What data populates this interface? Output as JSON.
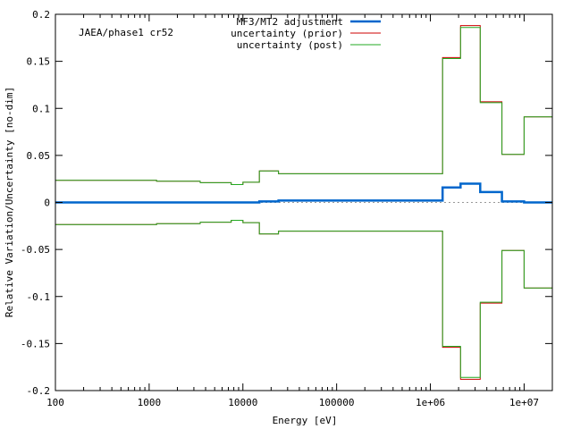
{
  "chart_data": {
    "type": "line",
    "annotation": "JAEA/phase1 cr52",
    "xlabel": "Energy [eV]",
    "ylabel": "Relative Variation/Uncertainty [no-dim]",
    "xscale": "log",
    "xlim": [
      100,
      20000000
    ],
    "ylim": [
      -0.2,
      0.2
    ],
    "x_ticks": [
      {
        "value": 100,
        "label": "100"
      },
      {
        "value": 1000,
        "label": "1000"
      },
      {
        "value": 10000,
        "label": "10000"
      },
      {
        "value": 100000,
        "label": "100000"
      },
      {
        "value": 1000000,
        "label": "1e+06"
      },
      {
        "value": 10000000,
        "label": "1e+07"
      }
    ],
    "y_ticks": [
      {
        "value": 0.2,
        "label": "0.2"
      },
      {
        "value": 0.15,
        "label": "0.15"
      },
      {
        "value": 0.1,
        "label": "0.1"
      },
      {
        "value": 0.05,
        "label": "0.05"
      },
      {
        "value": 0,
        "label": "0"
      },
      {
        "value": -0.05,
        "label": "-0.05"
      },
      {
        "value": -0.1,
        "label": "-0.1"
      },
      {
        "value": -0.15,
        "label": "-0.15"
      },
      {
        "value": -0.2,
        "label": "-0.2"
      }
    ],
    "zero_line": true,
    "grid": false,
    "legend_position": "top-center",
    "bin_edges": [
      100,
      1200,
      3500,
      7500,
      10000,
      15000,
      24000,
      40000,
      1350000,
      2100000,
      3400000,
      5800000,
      10000000,
      20000000
    ],
    "series": [
      {
        "name": "MF3/MT2 adjustment",
        "color": "#0066cc",
        "width": 2.5,
        "values": [
          0,
          0,
          0,
          0,
          0,
          0.001,
          0.002,
          0.002,
          0.016,
          0.02,
          0.011,
          0.001,
          0
        ]
      },
      {
        "name": "uncertainty (prior)",
        "color": "#cc0000",
        "width": 1,
        "values": [
          0.0235,
          0.0225,
          0.021,
          0.019,
          0.0215,
          0.0335,
          0.0305,
          0.0305,
          0.154,
          0.188,
          0.107,
          0.051,
          0.091
        ]
      },
      {
        "name": "uncertainty (post)",
        "color": "#22aa22",
        "width": 1,
        "values": [
          0.0235,
          0.0225,
          0.021,
          0.019,
          0.0215,
          0.0335,
          0.0305,
          0.0305,
          0.153,
          0.186,
          0.106,
          0.051,
          0.091
        ]
      }
    ],
    "symmetric_series": [
      "uncertainty (prior)",
      "uncertainty (post)"
    ]
  }
}
